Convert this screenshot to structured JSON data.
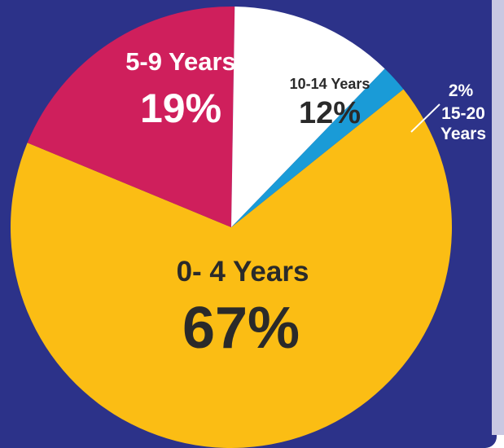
{
  "chart_data": {
    "type": "pie",
    "slices": [
      {
        "label": "0- 4 Years",
        "value": 67,
        "value_label": "67%",
        "color": "#fbbd14"
      },
      {
        "label": "5-9 Years",
        "value": 19,
        "value_label": "19%",
        "color": "#cf1f5c"
      },
      {
        "label": "10-14 Years",
        "value": 12,
        "value_label": "12%",
        "color": "#ffffff"
      },
      {
        "label_line1": "15-20",
        "label_line2": "Years",
        "value": 2,
        "value_label": "2%",
        "color": "#1a9bd7"
      }
    ],
    "background": "#2c3289"
  }
}
